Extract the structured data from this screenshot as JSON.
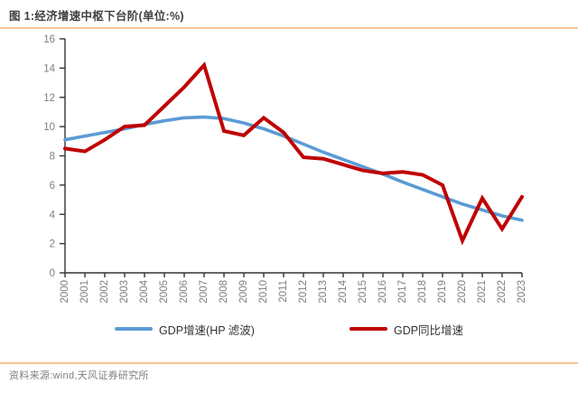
{
  "header": {
    "title": "图 1:经济增速中枢下台阶(单位:%)"
  },
  "chart_data": {
    "type": "line",
    "title": "经济增速中枢下台阶",
    "unit": "%",
    "x": [
      "2000",
      "2001",
      "2002",
      "2003",
      "2004",
      "2005",
      "2006",
      "2007",
      "2008",
      "2009",
      "2010",
      "2011",
      "2012",
      "2013",
      "2014",
      "2015",
      "2016",
      "2017",
      "2018",
      "2019",
      "2020",
      "2021",
      "2022",
      "2023"
    ],
    "series": [
      {
        "id": "hp",
        "name": "GDP增速(HP 滤波)",
        "color": "#5B9BD5",
        "values": [
          9.1,
          9.35,
          9.6,
          9.85,
          10.15,
          10.4,
          10.6,
          10.65,
          10.55,
          10.25,
          9.85,
          9.35,
          8.8,
          8.25,
          7.75,
          7.25,
          6.75,
          6.2,
          5.7,
          5.2,
          4.7,
          4.3,
          3.9,
          3.6
        ]
      },
      {
        "id": "yoy",
        "name": "GDP同比增速",
        "color": "#C00000",
        "values": [
          8.5,
          8.3,
          9.1,
          10.0,
          10.1,
          11.4,
          12.7,
          14.2,
          9.7,
          9.4,
          10.6,
          9.6,
          7.9,
          7.8,
          7.4,
          7.0,
          6.8,
          6.9,
          6.7,
          6.0,
          2.2,
          5.1,
          3.0,
          5.2
        ]
      }
    ],
    "ylim": [
      0,
      16
    ],
    "ytick_step": 2,
    "y_ticks": [
      0,
      2,
      4,
      6,
      8,
      10,
      12,
      14,
      16
    ],
    "grid": false,
    "legend_position": "bottom",
    "axis_color": "#333333",
    "tick_label_color": "#808080"
  },
  "footer": {
    "source": "资料来源:wind,天风证券研究所"
  }
}
